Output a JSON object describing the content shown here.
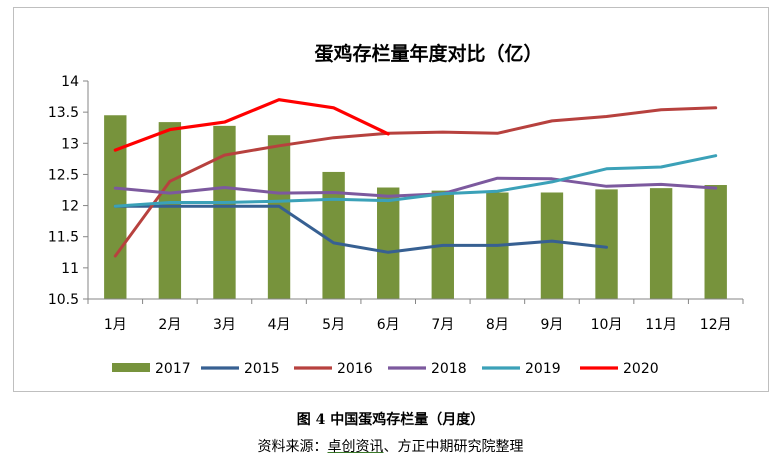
{
  "chart_data": {
    "type": "bar",
    "title": "蛋鸡存栏量年度对比（亿）",
    "categories": [
      "1月",
      "2月",
      "3月",
      "4月",
      "5月",
      "6月",
      "7月",
      "8月",
      "9月",
      "10月",
      "11月",
      "12月"
    ],
    "ylim": [
      10.5,
      14
    ],
    "yticks": [
      "10.5",
      "11",
      "11.5",
      "12",
      "12.5",
      "13",
      "13.5",
      "14"
    ],
    "bar_series": {
      "name": "2017",
      "color": "#77933c",
      "values": [
        13.45,
        13.34,
        13.28,
        13.13,
        12.54,
        12.29,
        12.24,
        12.21,
        12.21,
        12.26,
        12.28,
        12.33
      ]
    },
    "line_series": [
      {
        "name": "2015",
        "color": "#376092",
        "values": [
          11.99,
          11.99,
          11.99,
          11.99,
          11.4,
          11.25,
          11.36,
          11.36,
          11.43,
          11.33,
          null,
          null
        ]
      },
      {
        "name": "2016",
        "color": "#b7413e",
        "values": [
          11.19,
          12.39,
          12.81,
          12.96,
          13.09,
          13.16,
          13.18,
          13.16,
          13.36,
          13.43,
          13.54,
          13.57
        ]
      },
      {
        "name": "2018",
        "color": "#7c599e",
        "values": [
          12.28,
          12.2,
          12.29,
          12.2,
          12.21,
          12.15,
          12.19,
          12.44,
          12.43,
          12.31,
          12.34,
          12.28
        ]
      },
      {
        "name": "2019",
        "color": "#3ba1b8",
        "values": [
          11.99,
          12.05,
          12.05,
          12.07,
          12.1,
          12.08,
          12.19,
          12.23,
          12.38,
          12.59,
          12.62,
          12.8
        ]
      },
      {
        "name": "2020",
        "color": "#ff0000",
        "values": [
          12.89,
          13.22,
          13.34,
          13.7,
          13.57,
          13.15,
          null,
          null,
          null,
          null,
          null,
          null
        ]
      }
    ],
    "legend_order": [
      "2017",
      "2015",
      "2016",
      "2018",
      "2019",
      "2020"
    ],
    "legend_position": "bottom"
  },
  "figure_caption": "图 4  中国蛋鸡存栏量（月度）",
  "source": {
    "prefix": "资料来源：",
    "underlined": "卓创资讯",
    "suffix": "、方正中期研究院整理"
  }
}
